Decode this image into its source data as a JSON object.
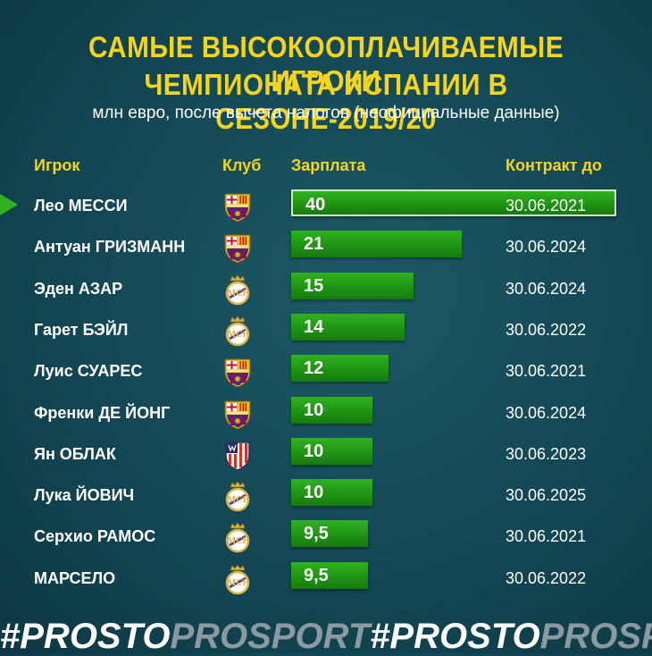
{
  "title_line1": "САМЫЕ ВЫСОКООПЛАЧИВАЕМЫЕ ИГРОКИ",
  "title_line2": "ЧЕМПИОНАТА ИСПАНИИ В СЕЗОНЕ-2019/20",
  "subtitle": "млн евро, после вычета налогов (неофициальные данные)",
  "headers": {
    "player": "Игрок",
    "club": "Клуб",
    "salary": "Зарплата",
    "contract": "Контракт до"
  },
  "colors": {
    "title": "#f4d41c",
    "bar": "#1f9414",
    "barcelona_blue": "#1b3f8f",
    "barcelona_red": "#a50044",
    "real_gold": "#d8b34a",
    "atletico_red": "#cb3524",
    "atletico_blue": "#272e61"
  },
  "footer": {
    "hash": "#",
    "part1": "PROSTO",
    "part2": "PROSPORT",
    "repeat": 3
  },
  "chart_data": {
    "type": "table",
    "title": "САМЫЕ ВЫСОКООПЛАЧИВАЕМЫЕ ИГРОКИ ЧЕМПИОНАТА ИСПАНИИ В СЕЗОНЕ-2019/20",
    "subtitle": "млн евро, после вычета налогов (неофициальные данные)",
    "columns": [
      "Игрок",
      "Клуб",
      "Зарплата",
      "Контракт до"
    ],
    "max_value": 40,
    "rows": [
      {
        "player": "Лео МЕССИ",
        "club": "barcelona",
        "salary": 40,
        "salary_label": "40",
        "contract": "30.06.2021"
      },
      {
        "player": "Антуан ГРИЗМАНН",
        "club": "barcelona",
        "salary": 21,
        "salary_label": "21",
        "contract": "30.06.2024"
      },
      {
        "player": "Эден АЗАР",
        "club": "real",
        "salary": 15,
        "salary_label": "15",
        "contract": "30.06.2024"
      },
      {
        "player": "Гарет БЭЙЛ",
        "club": "real",
        "salary": 14,
        "salary_label": "14",
        "contract": "30.06.2022"
      },
      {
        "player": "Луис СУАРЕС",
        "club": "barcelona",
        "salary": 12,
        "salary_label": "12",
        "contract": "30.06.2021"
      },
      {
        "player": "Френки ДЕ ЙОНГ",
        "club": "barcelona",
        "salary": 10,
        "salary_label": "10",
        "contract": "30.06.2024"
      },
      {
        "player": "Ян ОБЛАК",
        "club": "atletico",
        "salary": 10,
        "salary_label": "10",
        "contract": "30.06.2023"
      },
      {
        "player": "Лука ЙОВИЧ",
        "club": "real",
        "salary": 10,
        "salary_label": "10",
        "contract": "30.06.2025"
      },
      {
        "player": "Серхио РАМОС",
        "club": "real",
        "salary": 9.5,
        "salary_label": "9,5",
        "contract": "30.06.2021"
      },
      {
        "player": "МАРСЕЛО",
        "club": "real",
        "salary": 9.5,
        "salary_label": "9,5",
        "contract": "30.06.2022"
      }
    ]
  }
}
